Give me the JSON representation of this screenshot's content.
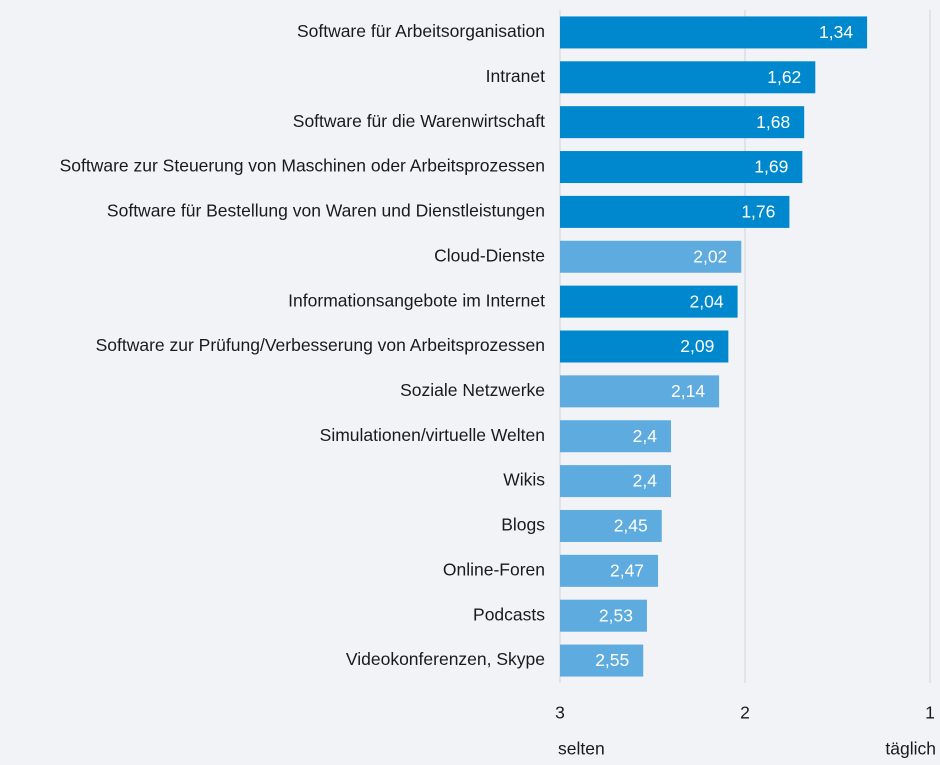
{
  "chart_data": {
    "type": "barh",
    "categories": [
      "Software für Arbeitsorganisation",
      "Intranet",
      "Software für die Warenwirtschaft",
      "Software zur Steuerung von Maschinen oder Arbeitsprozessen",
      "Software für Bestellung von Waren und Dienstleistungen",
      "Cloud-Dienste",
      "Informationsangebote im Internet",
      "Software zur Prüfung/Verbesserung von Arbeitsprozessen",
      "Soziale Netzwerke",
      "Simulationen/virtuelle Welten",
      "Wikis",
      "Blogs",
      "Online-Foren",
      "Podcasts",
      "Videokonferenzen, Skype"
    ],
    "values": [
      1.34,
      1.62,
      1.68,
      1.69,
      1.76,
      2.02,
      2.04,
      2.09,
      2.14,
      2.4,
      2.4,
      2.45,
      2.47,
      2.53,
      2.55
    ],
    "value_labels": [
      "1,34",
      "1,62",
      "1,68",
      "1,69",
      "1,76",
      "2,02",
      "2,04",
      "2,09",
      "2,14",
      "2,4",
      "2,4",
      "2,45",
      "2,47",
      "2,53",
      "2,55"
    ],
    "colors": [
      "#0088cf",
      "#0088cf",
      "#0088cf",
      "#0088cf",
      "#0088cf",
      "#5eabdf",
      "#0088cf",
      "#0088cf",
      "#5eabdf",
      "#5eabdf",
      "#5eabdf",
      "#5eabdf",
      "#5eabdf",
      "#5eabdf",
      "#5eabdf"
    ],
    "xlim": [
      3,
      1
    ],
    "xticks": [
      3,
      2,
      1
    ],
    "xlabel_left": "selten",
    "xlabel_right": "täglich",
    "grid": true
  }
}
